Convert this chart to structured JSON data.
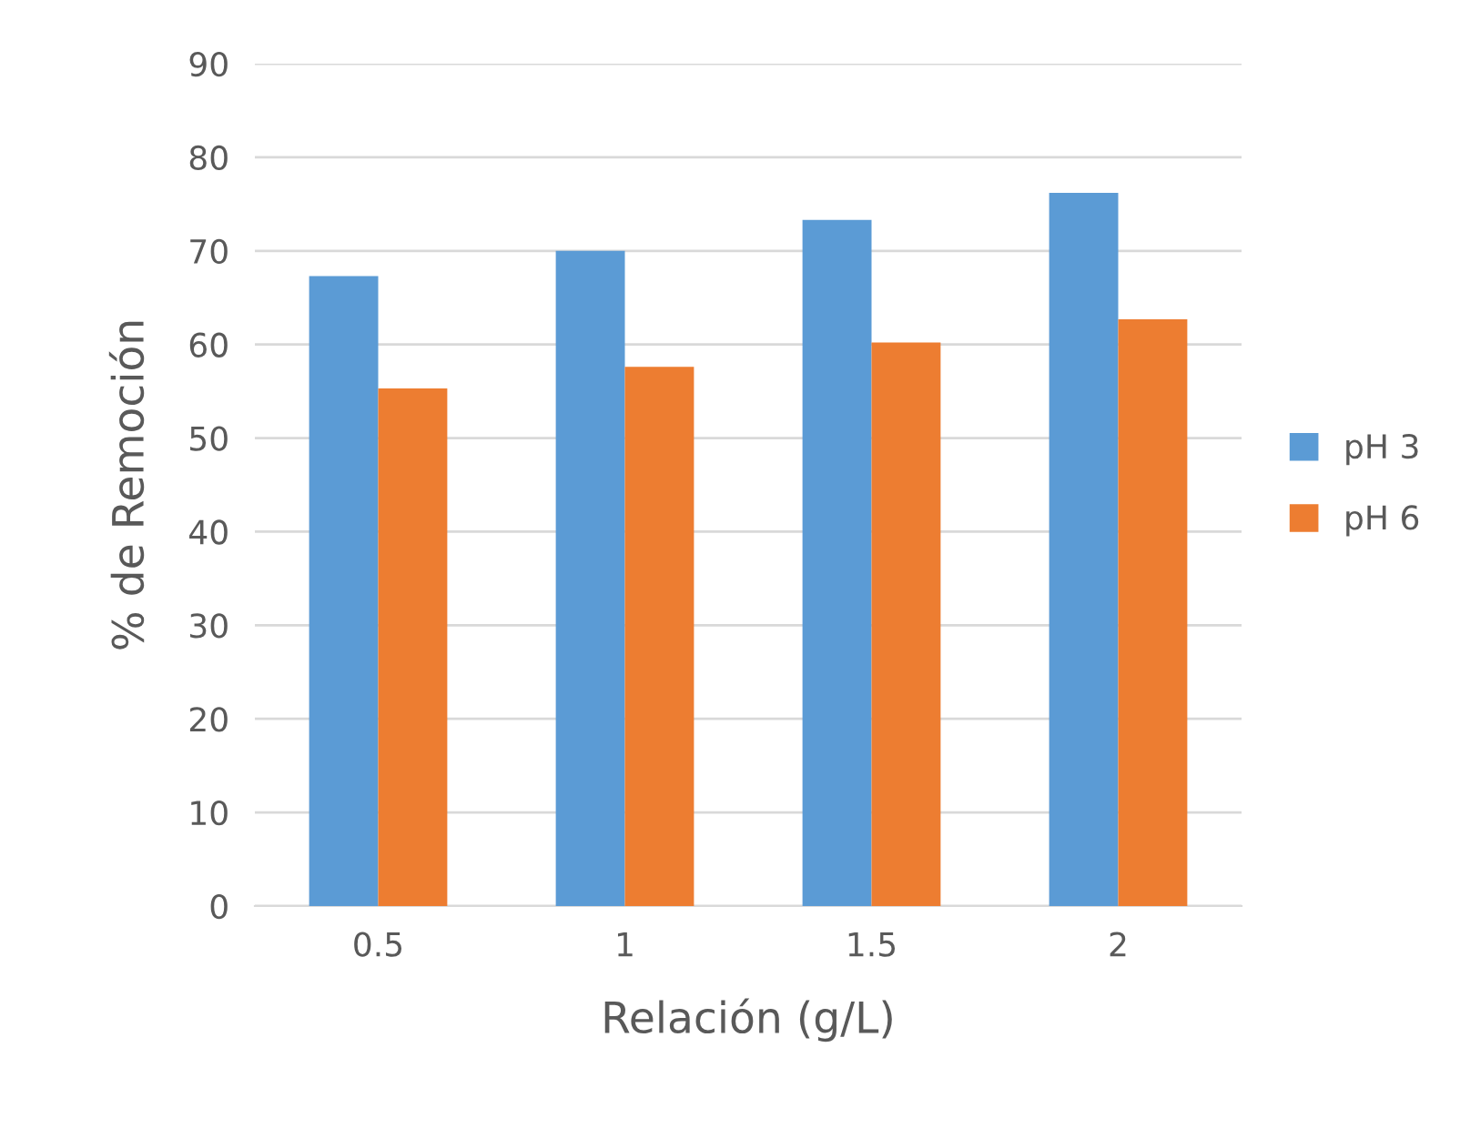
{
  "chart_data": {
    "type": "bar",
    "xlabel": "Relación (g/L)",
    "ylabel": "% de Remoción",
    "categories": [
      "0.5",
      "1",
      "1.5",
      "2"
    ],
    "series": [
      {
        "name": "pH 3",
        "color": "#5b9bd5",
        "values": [
          67.3,
          70.0,
          73.3,
          76.2
        ]
      },
      {
        "name": "pH 6",
        "color": "#ed7d31",
        "values": [
          55.3,
          57.6,
          60.2,
          62.7
        ]
      }
    ],
    "ylim": [
      0,
      90
    ],
    "yticks": [
      0,
      10,
      20,
      30,
      40,
      50,
      60,
      70,
      80,
      90
    ],
    "grid": "y",
    "legend": "right"
  }
}
